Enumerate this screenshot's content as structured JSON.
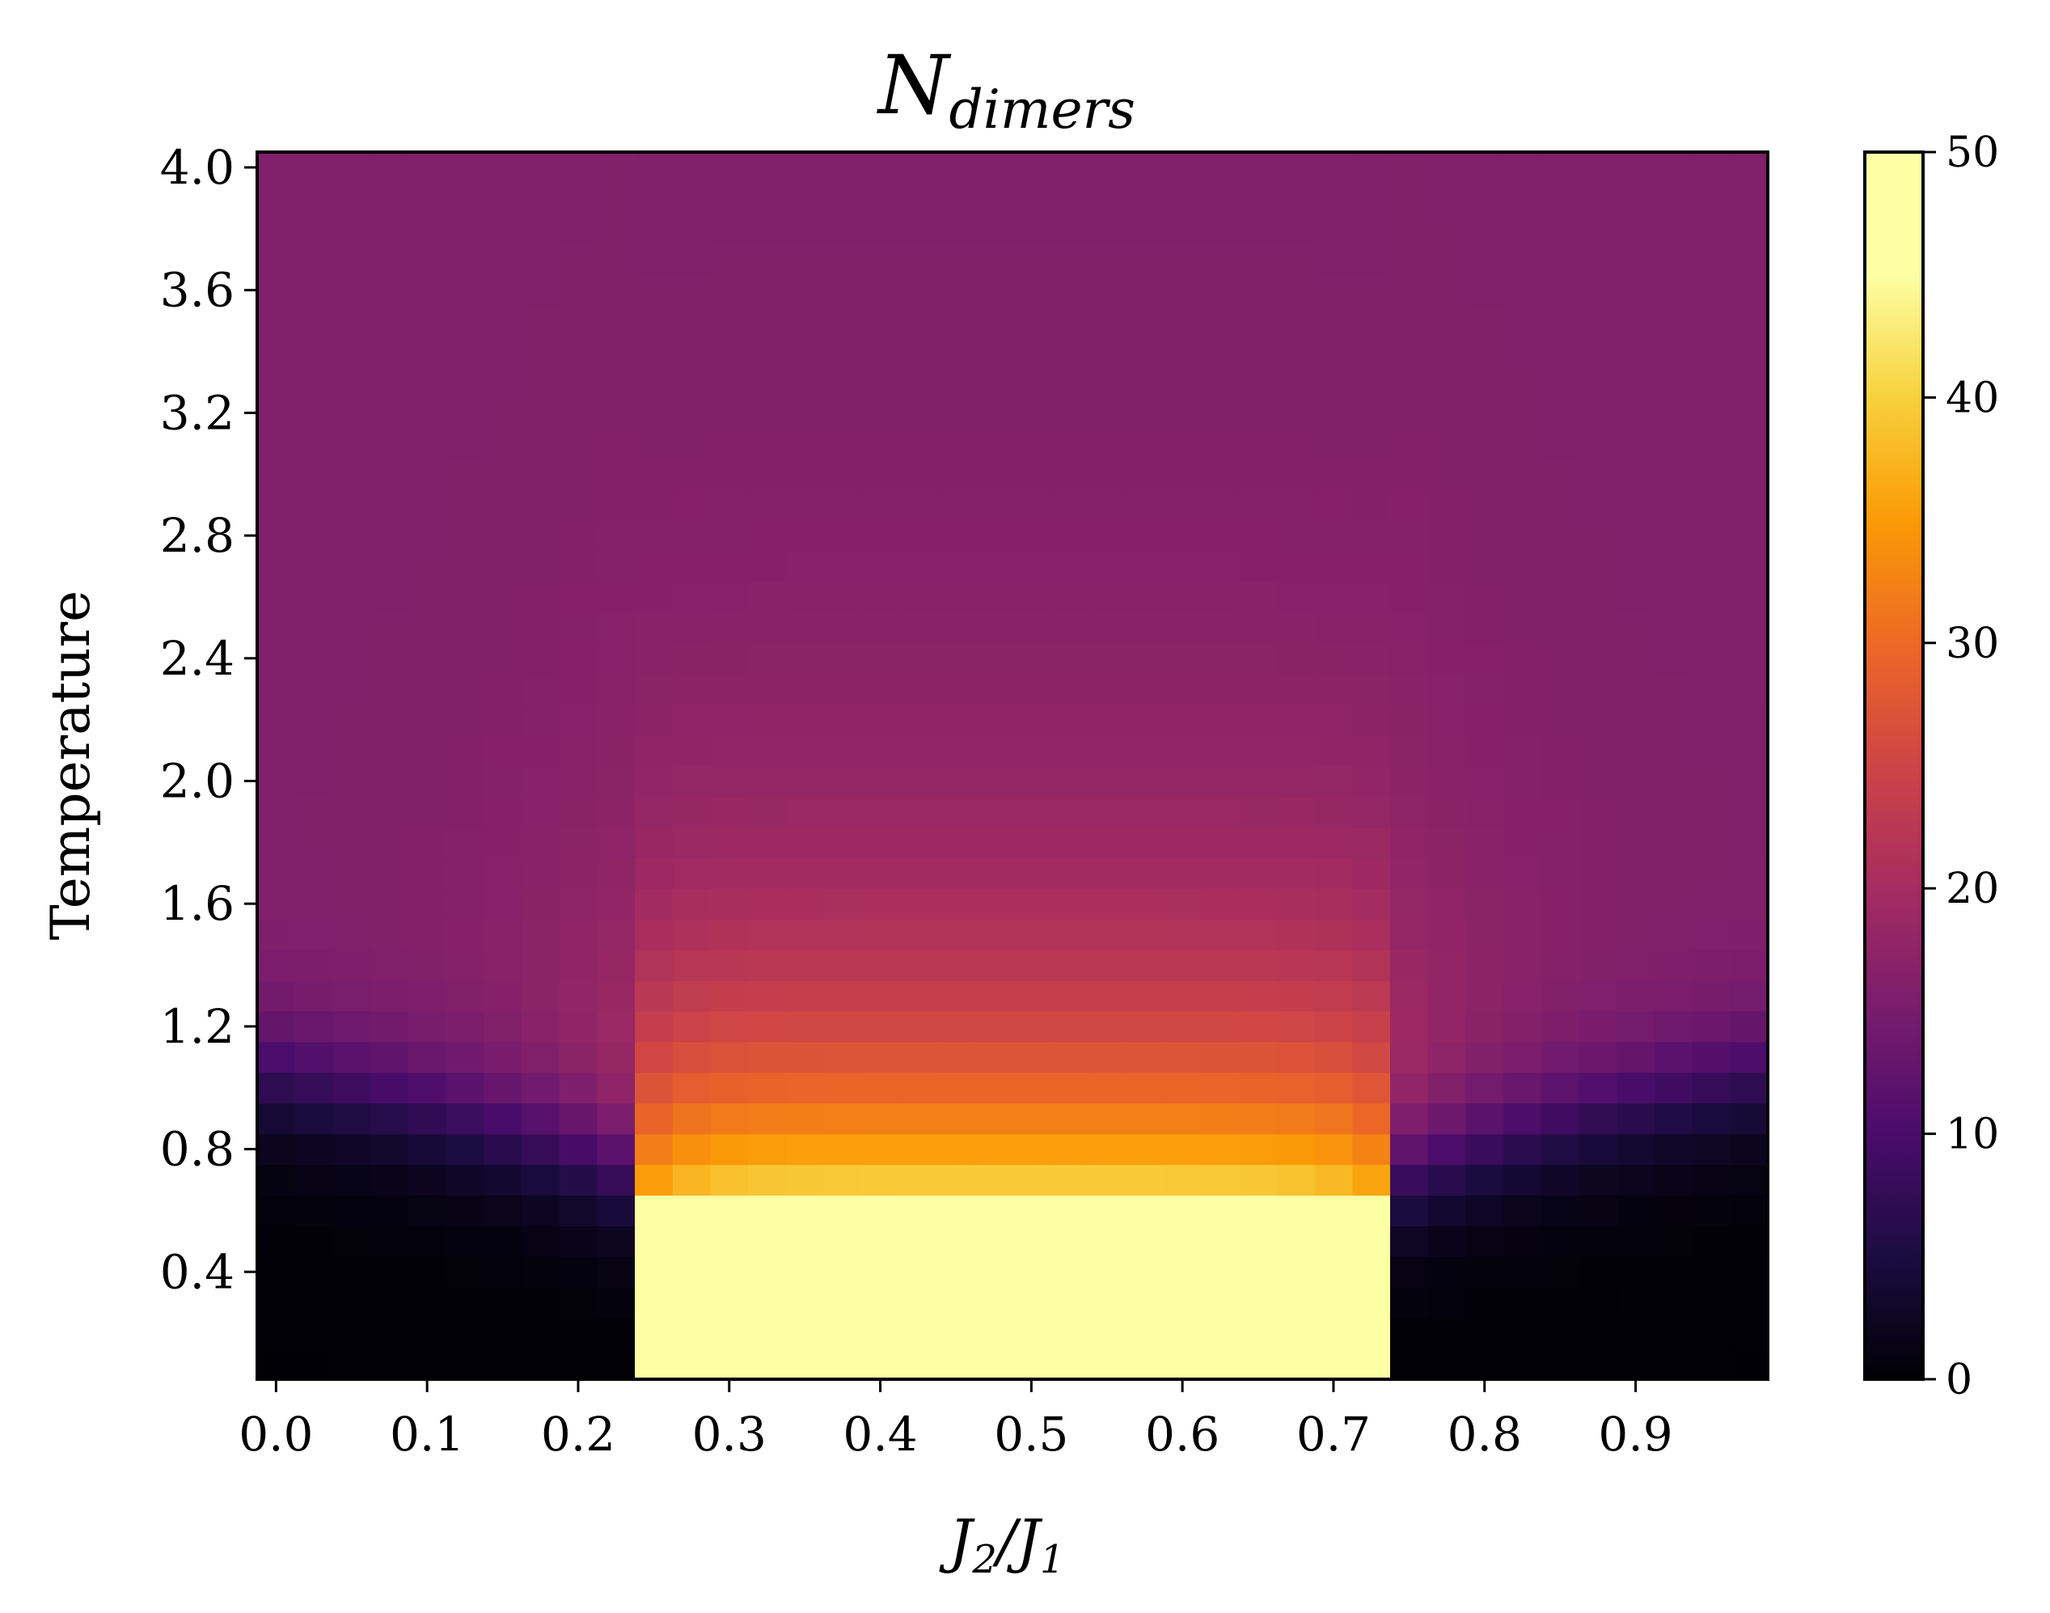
{
  "chart_data": {
    "type": "heatmap",
    "title_main": "N",
    "title_sub": "dimers",
    "xlabel_parts": [
      "J",
      "2",
      "/J",
      "1"
    ],
    "ylabel": "Temperature",
    "x_ticks": [
      "0.0",
      "0.1",
      "0.2",
      "0.3",
      "0.4",
      "0.5",
      "0.6",
      "0.7",
      "0.8",
      "0.9"
    ],
    "x_tick_values": [
      0.0,
      0.1,
      0.2,
      0.3,
      0.4,
      0.5,
      0.6,
      0.7,
      0.8,
      0.9
    ],
    "y_ticks": [
      "0.4",
      "0.8",
      "1.2",
      "1.6",
      "2.0",
      "2.4",
      "2.8",
      "3.2",
      "3.6",
      "4.0"
    ],
    "y_tick_values": [
      0.4,
      0.8,
      1.2,
      1.6,
      2.0,
      2.4,
      2.8,
      3.2,
      3.6,
      4.0
    ],
    "xlim": [
      -0.0125,
      0.9875
    ],
    "ylim": [
      0.05,
      4.05
    ],
    "x_start": 0.0,
    "x_step": 0.025,
    "x_count": 40,
    "y_start": 0.1,
    "y_step": 0.1,
    "y_count": 40,
    "colormap": "inferno",
    "colorbar": {
      "min": 0,
      "max": 50,
      "ticks": [
        "0",
        "10",
        "20",
        "30",
        "40",
        "50"
      ],
      "tick_values": [
        0,
        10,
        20,
        30,
        40,
        50
      ]
    },
    "approximate_values": {
      "high_temperature_plateau": 16,
      "ordered_region_value": 50,
      "ordered_region_x_range": [
        0.25,
        0.725
      ],
      "ordered_region_top_temperature": 0.6,
      "low_value_lobes_x": [
        [
          0.0,
          0.225
        ],
        [
          0.75,
          0.975
        ]
      ]
    }
  }
}
